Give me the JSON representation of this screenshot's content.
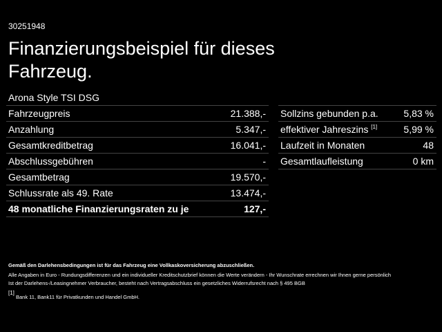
{
  "header": {
    "id": "30251948",
    "title": "Finanzierungsbeispiel für dieses Fahrzeug.",
    "vehicle": "Arona Style TSI DSG"
  },
  "left_table": {
    "rows": [
      {
        "label": "Fahrzeugpreis",
        "value": "21.388,-"
      },
      {
        "label": "Anzahlung",
        "value": "5.347,-"
      },
      {
        "label": "Gesamtkreditbetrag",
        "value": "16.041,-"
      },
      {
        "label": "Abschlussgebühren",
        "value": "-"
      },
      {
        "label": "Gesamtbetrag",
        "value": "19.570,-"
      },
      {
        "label": "Schlussrate als 49. Rate",
        "value": "13.474,-"
      },
      {
        "label": "48 monatliche Finanzierungsraten zu je",
        "value": "127,-"
      }
    ]
  },
  "right_table": {
    "rows": [
      {
        "label": "Sollzins gebunden p.a.",
        "value": "5,83 %"
      },
      {
        "label": "effektiver Jahreszins",
        "note": "[1]",
        "value": "5,99 %"
      },
      {
        "label": "Laufzeit in Monaten",
        "value": "48"
      },
      {
        "label": "Gesamtlaufleistung",
        "value": "0 km"
      }
    ]
  },
  "footnotes": {
    "insurance": "Gemäß den Darlehensbedingungen ist für das Fahrzeug eine Vollkaskoversicherung abzuschließen.",
    "disclaimer": [
      "Alle Angaben in Euro - Rundungsdifferenzen und ein individueller Kreditschutzbrief können die Werte verändern - Ihr Wunschrate errechnen wir Ihnen gerne persönlich",
      "Ist der Darlehens-/Leasingnehmer Verbraucher, besteht nach Vertragsabschluss ein gesetzliches Widerrufsrecht nach § 495 BGB"
    ],
    "reference": {
      "marker": "[1]",
      "text": "Bank 11, Bank11 für Privatkunden und Handel GmbH."
    }
  }
}
